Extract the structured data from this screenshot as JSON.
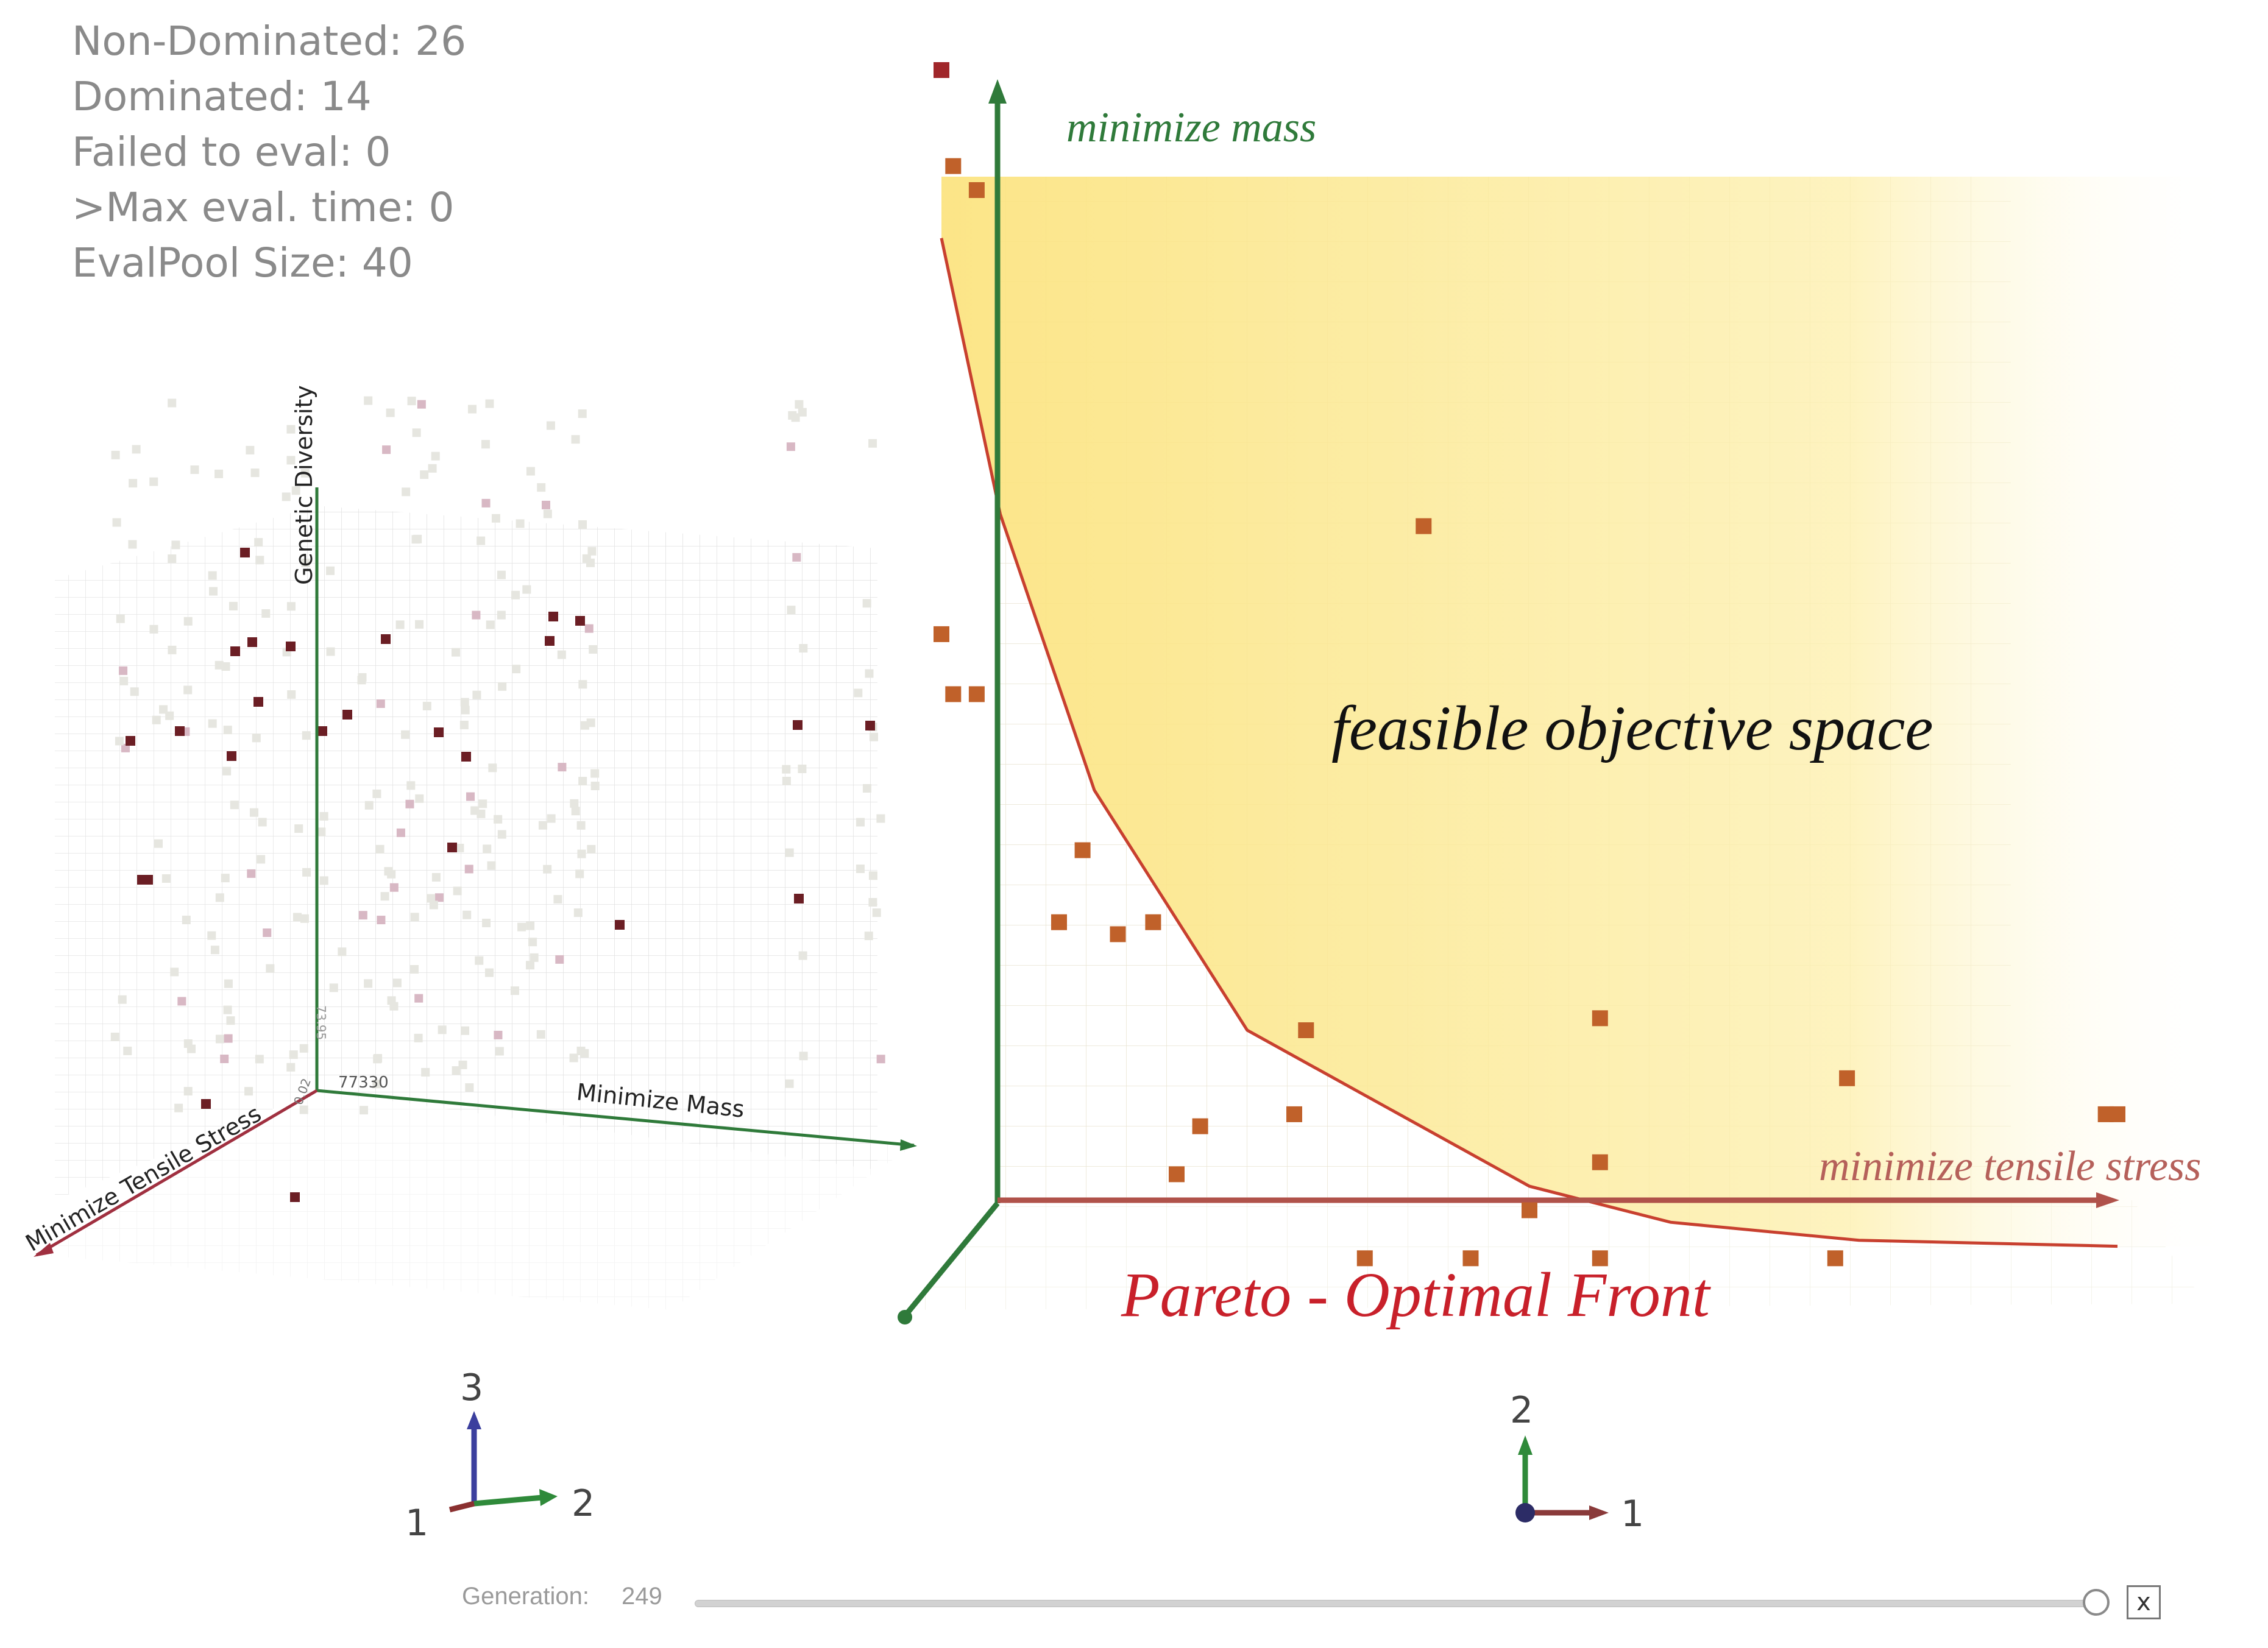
{
  "stats": {
    "non_dominated": "Non-Dominated: 26",
    "dominated": "Dominated: 14",
    "failed": "Failed to eval: 0",
    "max_eval": ">Max eval. time: 0",
    "pool": "EvalPool Size: 40"
  },
  "left_plot": {
    "axis_z": "Genetic Diversity",
    "axis_x": "Minimize Mass",
    "axis_y": "Minimize Tensile Stress",
    "origin_tick": "77330",
    "small_tick": "0.02",
    "vert_tick": "73.95",
    "triad": {
      "x": "2",
      "y": "3",
      "z": "1"
    }
  },
  "right_plot": {
    "y_axis_label": "minimize mass",
    "x_axis_label": "minimize tensile stress",
    "region_label": "feasible objective space",
    "front_label": "Pareto - Optimal Front",
    "triad": {
      "x": "1",
      "y": "2"
    }
  },
  "colors": {
    "pareto": "#c8402f",
    "point": "#c0612a",
    "feasible": "#fdeb8c",
    "axis_green": "#2f7a3a",
    "axis_red": "#a04040",
    "dark_point": "#6b1e24"
  },
  "generation": {
    "label": "Generation:",
    "value": "249",
    "close": "x",
    "slider_fraction": 1.0
  },
  "chart_data": {
    "type": "scatter",
    "title": "",
    "x_label": "minimize tensile stress",
    "y_label": "minimize mass",
    "annotations": [
      "feasible objective space",
      "Pareto - Optimal Front"
    ],
    "grid": true,
    "pareto_front": [
      [
        0.0,
        0.86
      ],
      [
        0.05,
        0.63
      ],
      [
        0.13,
        0.4
      ],
      [
        0.26,
        0.2
      ],
      [
        0.5,
        0.07
      ],
      [
        0.62,
        0.04
      ],
      [
        0.78,
        0.025
      ],
      [
        1.0,
        0.02
      ]
    ],
    "points": [
      [
        0.0,
        1.0
      ],
      [
        0.01,
        0.92
      ],
      [
        0.03,
        0.9
      ],
      [
        0.0,
        0.53
      ],
      [
        0.01,
        0.48
      ],
      [
        0.03,
        0.48
      ],
      [
        0.12,
        0.35
      ],
      [
        0.18,
        0.29
      ],
      [
        0.41,
        0.62
      ],
      [
        0.1,
        0.29
      ],
      [
        0.15,
        0.28
      ],
      [
        0.22,
        0.12
      ],
      [
        0.2,
        0.08
      ],
      [
        0.56,
        0.21
      ],
      [
        0.5,
        0.05
      ],
      [
        0.45,
        0.01
      ],
      [
        0.36,
        0.01
      ],
      [
        0.31,
        0.2
      ],
      [
        0.3,
        0.13
      ],
      [
        0.56,
        0.09
      ],
      [
        0.56,
        0.01
      ],
      [
        0.76,
        0.01
      ],
      [
        0.77,
        0.16
      ],
      [
        0.99,
        0.13
      ],
      [
        1.0,
        0.13
      ]
    ]
  }
}
